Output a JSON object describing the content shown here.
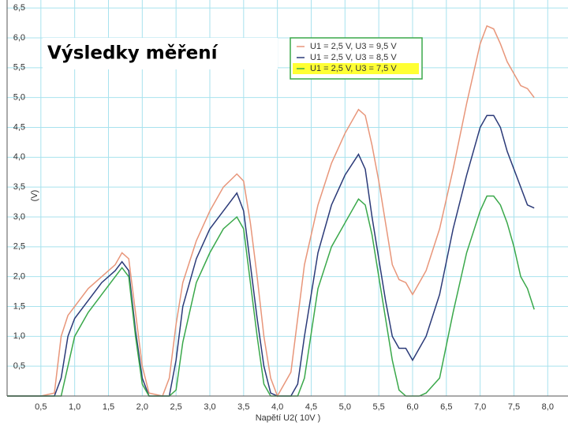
{
  "chart_data": {
    "type": "line",
    "title": "Výsledky měření",
    "x_label": "Napětí U2( 10V )",
    "y_label": "(V)",
    "x": [
      0,
      0.5,
      0.7,
      0.8,
      0.9,
      1.0,
      1.2,
      1.4,
      1.6,
      1.7,
      1.8,
      1.9,
      2.0,
      2.1,
      2.3,
      2.4,
      2.5,
      2.6,
      2.8,
      3.0,
      3.2,
      3.4,
      3.5,
      3.6,
      3.7,
      3.8,
      3.9,
      4.0,
      4.2,
      4.3,
      4.4,
      4.6,
      4.8,
      5.0,
      5.2,
      5.3,
      5.4,
      5.5,
      5.6,
      5.7,
      5.8,
      5.9,
      6.0,
      6.1,
      6.2,
      6.4,
      6.6,
      6.8,
      7.0,
      7.1,
      7.2,
      7.3,
      7.4,
      7.5,
      7.6,
      7.7,
      7.8,
      7.9
    ],
    "series": [
      {
        "name": "U1 = 2,5 V, U3 =  9,5 V",
        "color": "#e8967a",
        "values": [
          0,
          0,
          0.05,
          1.0,
          1.35,
          1.5,
          1.8,
          2.0,
          2.2,
          2.4,
          2.3,
          1.4,
          0.5,
          0.05,
          0,
          0.3,
          1.2,
          1.9,
          2.6,
          3.1,
          3.5,
          3.72,
          3.6,
          2.9,
          2.0,
          1.0,
          0.3,
          0,
          0.4,
          1.3,
          2.2,
          3.2,
          3.9,
          4.4,
          4.8,
          4.7,
          4.2,
          3.6,
          2.9,
          2.2,
          1.95,
          1.9,
          1.7,
          1.9,
          2.1,
          2.8,
          3.8,
          4.9,
          5.9,
          6.2,
          6.15,
          5.9,
          5.6,
          5.4,
          5.2,
          5.15,
          5.0,
          null
        ]
      },
      {
        "name": "U1 = 2,5 V, U3 =  8,5 V",
        "color": "#2b3a78",
        "values": [
          0,
          0,
          0,
          0.3,
          1.0,
          1.3,
          1.6,
          1.9,
          2.1,
          2.25,
          2.1,
          1.1,
          0.3,
          0,
          0,
          0,
          0.6,
          1.5,
          2.3,
          2.8,
          3.1,
          3.4,
          3.1,
          2.2,
          1.3,
          0.5,
          0.05,
          0,
          0,
          0.2,
          1.0,
          2.4,
          3.2,
          3.7,
          4.05,
          3.8,
          3.0,
          2.3,
          1.6,
          1.0,
          0.8,
          0.8,
          0.6,
          0.8,
          1.0,
          1.7,
          2.8,
          3.7,
          4.5,
          4.7,
          4.7,
          4.5,
          4.1,
          3.8,
          3.5,
          3.2,
          3.15,
          null
        ]
      },
      {
        "name": "U1 = 2,5 V, U3 =  7,5 V",
        "color": "#3aa84a",
        "values": [
          0,
          0,
          0,
          0,
          0.5,
          1.0,
          1.4,
          1.7,
          2.0,
          2.15,
          2.0,
          1.0,
          0.2,
          0,
          0,
          0,
          0.1,
          0.9,
          1.9,
          2.4,
          2.8,
          3.0,
          2.8,
          1.9,
          1.0,
          0.2,
          0,
          0,
          0,
          0,
          0.3,
          1.8,
          2.5,
          2.9,
          3.3,
          3.2,
          2.7,
          2.0,
          1.3,
          0.6,
          0.1,
          0,
          0,
          0,
          0.05,
          0.3,
          1.4,
          2.4,
          3.1,
          3.35,
          3.35,
          3.2,
          2.9,
          2.5,
          2.0,
          1.8,
          1.45,
          null
        ]
      }
    ],
    "xlim": [
      0,
      8.3
    ],
    "ylim": [
      0,
      6.6
    ],
    "xticks": [
      {
        "value": 0.5,
        "label": "0,5"
      },
      {
        "value": 1.0,
        "label": "1,0"
      },
      {
        "value": 1.5,
        "label": "1,5"
      },
      {
        "value": 2.0,
        "label": "2,0"
      },
      {
        "value": 2.5,
        "label": "2,5"
      },
      {
        "value": 3.0,
        "label": "3,0"
      },
      {
        "value": 3.5,
        "label": "3,5"
      },
      {
        "value": 4.0,
        "label": "4,0"
      },
      {
        "value": 4.5,
        "label": "4,5"
      },
      {
        "value": 5.0,
        "label": "5,0"
      },
      {
        "value": 5.5,
        "label": "5,5"
      },
      {
        "value": 6.0,
        "label": "6,0"
      },
      {
        "value": 6.5,
        "label": "6,5"
      },
      {
        "value": 7.0,
        "label": "7,0"
      },
      {
        "value": 7.5,
        "label": "7,5"
      },
      {
        "value": 8.0,
        "label": "8,0"
      }
    ],
    "yticks": [
      {
        "value": 0.5,
        "label": "0,5"
      },
      {
        "value": 1.0,
        "label": "1,0"
      },
      {
        "value": 1.5,
        "label": "1,5"
      },
      {
        "value": 2.0,
        "label": "2,0"
      },
      {
        "value": 2.5,
        "label": "2,5"
      },
      {
        "value": 3.0,
        "label": "3,0"
      },
      {
        "value": 3.5,
        "label": "3,5"
      },
      {
        "value": 4.0,
        "label": "4,0"
      },
      {
        "value": 4.5,
        "label": "4,5"
      },
      {
        "value": 5.0,
        "label": "5,0"
      },
      {
        "value": 5.5,
        "label": "5,5"
      },
      {
        "value": 6.0,
        "label": "6,0"
      },
      {
        "value": 6.5,
        "label": "6,5"
      }
    ],
    "grid": true
  }
}
